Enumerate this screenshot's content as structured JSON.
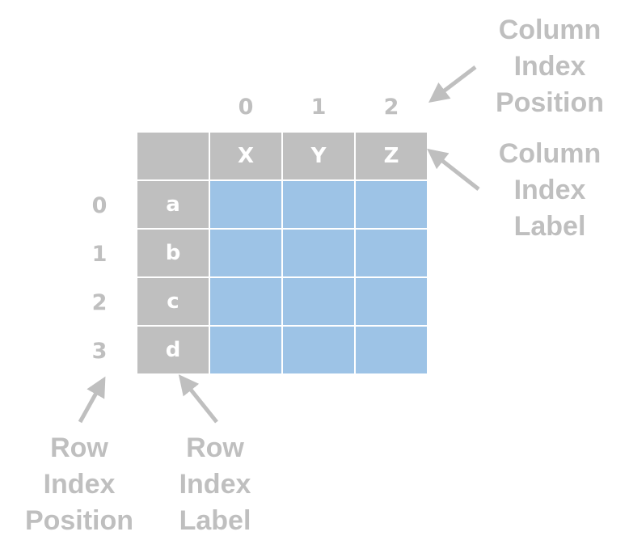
{
  "column_positions": [
    "0",
    "1",
    "2"
  ],
  "row_positions": [
    "0",
    "1",
    "2",
    "3"
  ],
  "column_labels": [
    "X",
    "Y",
    "Z"
  ],
  "row_labels": [
    "a",
    "b",
    "c",
    "d"
  ],
  "captions": {
    "column_index_position": [
      "Column",
      "Index",
      "Position"
    ],
    "column_index_label": [
      "Column",
      "Index",
      "Label"
    ],
    "row_index_position": [
      "Row",
      "Index",
      "Position"
    ],
    "row_index_label": [
      "Row",
      "Index",
      "Label"
    ]
  },
  "colors": {
    "index_gray": "#bfbfbf",
    "data_blue": "#9dc3e6",
    "caption_gray": "#bfbfbf",
    "arrow_gray": "#bfbfbf"
  }
}
